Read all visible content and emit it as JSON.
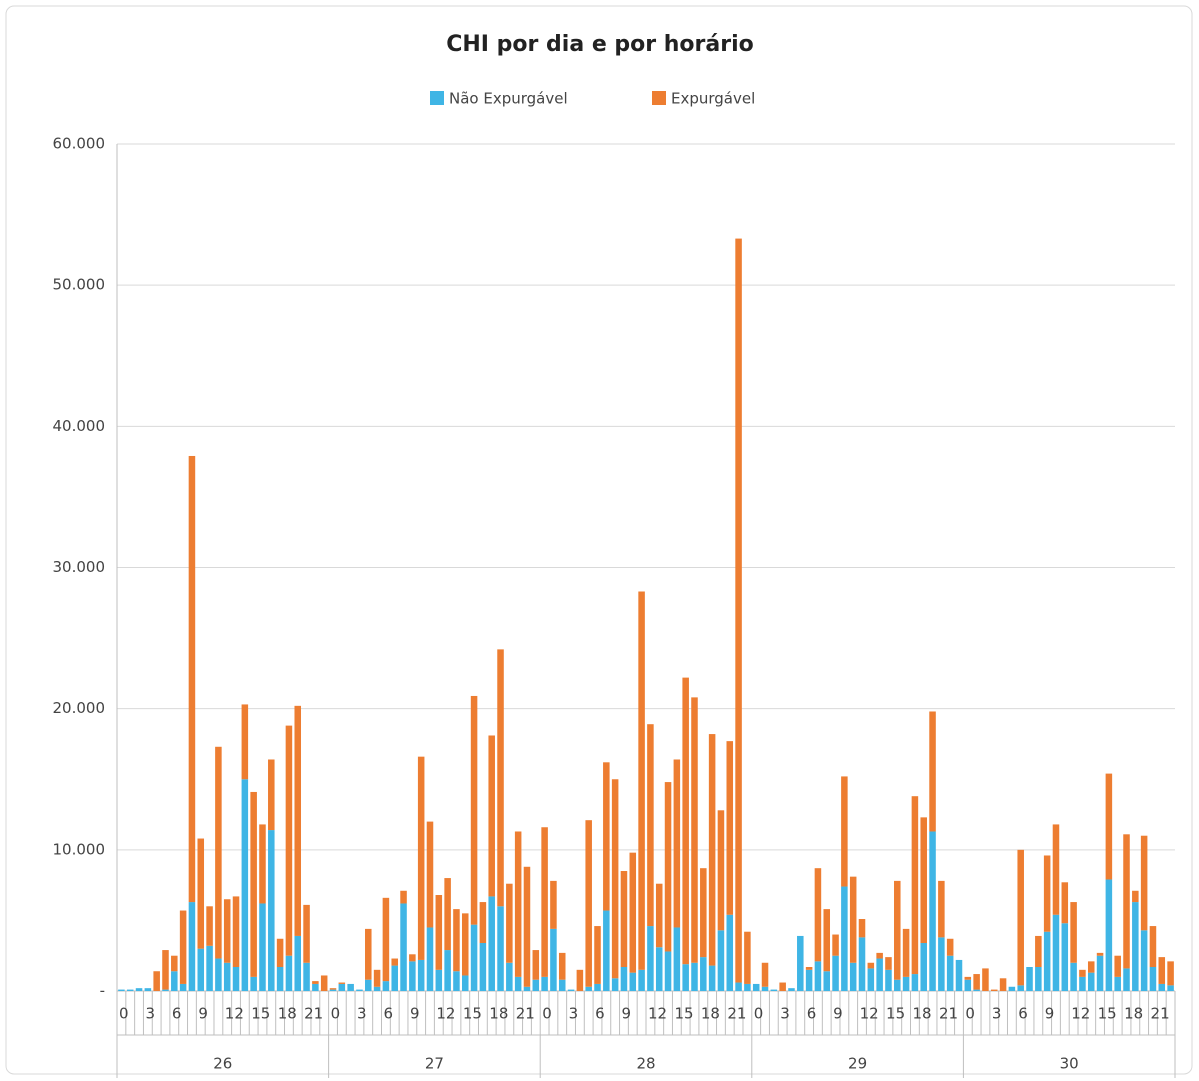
{
  "chart_data": {
    "type": "stacked_bar",
    "title": "CHI por dia e por horário",
    "categories": [
      "0",
      null,
      null,
      "3",
      null,
      null,
      "6",
      null,
      null,
      "9",
      null,
      null,
      "12",
      null,
      null,
      "15",
      null,
      null,
      "18",
      null,
      null,
      "21",
      null,
      null,
      "0",
      null,
      null,
      "3",
      null,
      null,
      "6",
      null,
      null,
      "9",
      null,
      null,
      "12",
      null,
      null,
      "15",
      null,
      null,
      "18",
      null,
      null,
      "21",
      null,
      null,
      "0",
      null,
      null,
      "3",
      null,
      null,
      "6",
      null,
      null,
      "9",
      null,
      null,
      "12",
      null,
      null,
      "15",
      null,
      null,
      "18",
      null,
      null,
      "21",
      null,
      null,
      "0",
      null,
      null,
      "3",
      null,
      null,
      "6",
      null,
      null,
      "9",
      null,
      null,
      "12",
      null,
      null,
      "15",
      null,
      null,
      "18",
      null,
      null,
      "21",
      null,
      null,
      "0",
      null,
      null,
      "3",
      null,
      null,
      "6",
      null,
      null,
      "9",
      null,
      null,
      "12",
      null,
      null,
      "15",
      null,
      null,
      "18",
      null,
      null,
      "21",
      null,
      null
    ],
    "groups": [
      "26",
      "27",
      "28",
      "29",
      "30"
    ],
    "series": [
      {
        "name": "Não Expurgável",
        "color": "#3fb5e5",
        "values": [
          100,
          100,
          200,
          200,
          0,
          100,
          1400,
          500,
          6300,
          3000,
          3200,
          2300,
          2000,
          1700,
          15000,
          1000,
          6200,
          11400,
          1700,
          2500,
          3900,
          2000,
          500,
          0,
          100,
          500,
          500,
          100,
          800,
          300,
          700,
          1800,
          6200,
          2100,
          2200,
          4500,
          1500,
          2900,
          1400,
          1100,
          4700,
          3400,
          6700,
          6000,
          2000,
          1000,
          300,
          800,
          1000,
          4400,
          800,
          100,
          0,
          300,
          500,
          5700,
          900,
          1700,
          1300,
          1500,
          4600,
          3100,
          2800,
          4500,
          1900,
          2000,
          2400,
          1800,
          4300,
          5400,
          600,
          500,
          500,
          300,
          100,
          0,
          200,
          3900,
          1500,
          2100,
          1400,
          2500,
          7400,
          2000,
          3800,
          1600,
          2300,
          1500,
          800,
          1000,
          1200,
          3400,
          11300,
          3800,
          2500,
          2200,
          800,
          100,
          0,
          0,
          0,
          300,
          400,
          1700,
          1700,
          4200,
          5400,
          4800,
          2000,
          1000,
          1300,
          2500,
          7900,
          1000,
          1600,
          6300,
          4300,
          1700,
          500,
          400
        ]
      },
      {
        "name": "Expurgável",
        "color": "#ed7d31",
        "values": [
          0,
          0,
          0,
          0,
          1400,
          2800,
          1100,
          5200,
          31600,
          7800,
          2800,
          15000,
          4500,
          5000,
          5300,
          13100,
          5600,
          5000,
          2000,
          16300,
          16300,
          4100,
          200,
          1100,
          100,
          100,
          0,
          0,
          3600,
          1200,
          5900,
          500,
          900,
          500,
          14400,
          7500,
          5300,
          5100,
          4400,
          4400,
          16200,
          2900,
          11400,
          18200,
          5600,
          10300,
          8500,
          2100,
          10600,
          3400,
          1900,
          0,
          1500,
          11800,
          4100,
          10500,
          14100,
          6800,
          8500,
          26800,
          14300,
          4500,
          12000,
          11900,
          20300,
          18800,
          6300,
          16400,
          8500,
          12300,
          52700,
          3700,
          0,
          1700,
          0,
          600,
          0,
          0,
          200,
          6600,
          4400,
          1500,
          7800,
          6100,
          1300,
          400,
          400,
          900,
          7000,
          3400,
          12600,
          8900,
          8500,
          4000,
          1200,
          0,
          200,
          1100,
          1600,
          100,
          900,
          0,
          9600,
          0,
          2200,
          5400,
          6400,
          2900,
          4300,
          500,
          800,
          200,
          7500,
          1500,
          9500,
          800,
          6700,
          2900,
          1900,
          1700
        ]
      }
    ],
    "ylim": [
      0,
      60000
    ],
    "yticks": [
      {
        "value": 0,
        "label": "-"
      },
      {
        "value": 10000,
        "label": "10.000"
      },
      {
        "value": 20000,
        "label": "20.000"
      },
      {
        "value": 30000,
        "label": "30.000"
      },
      {
        "value": 40000,
        "label": "40.000"
      },
      {
        "value": 50000,
        "label": "50.000"
      },
      {
        "value": 60000,
        "label": "60.000"
      }
    ],
    "grid": true,
    "legend": "top"
  }
}
